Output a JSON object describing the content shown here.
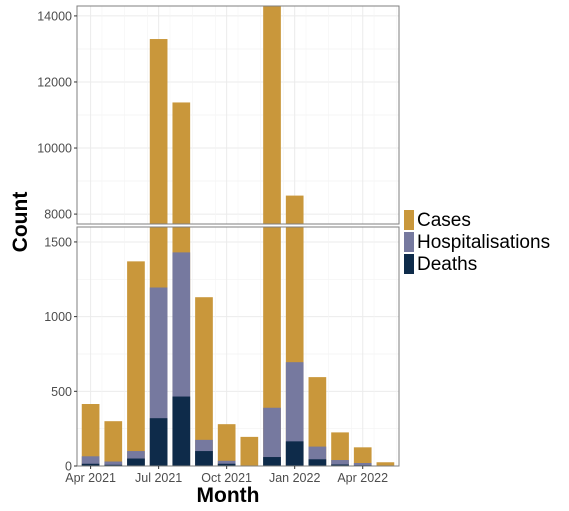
{
  "chart_data": {
    "type": "bar",
    "layout": "overlaid-broken-axis",
    "xlabel": "Month",
    "ylabel": "Count",
    "categories": [
      "2021-04",
      "2021-05",
      "2021-06",
      "2021-07",
      "2021-08",
      "2021-09",
      "2021-10",
      "2021-11",
      "2021-12",
      "2022-01",
      "2022-02",
      "2022-03",
      "2022-04",
      "2022-05"
    ],
    "x_ticks": [
      {
        "month": "2021-04",
        "label": "Apr 2021"
      },
      {
        "month": "2021-07",
        "label": "Jul 2021"
      },
      {
        "month": "2021-10",
        "label": "Oct 2021"
      },
      {
        "month": "2022-01",
        "label": "Jan 2022"
      },
      {
        "month": "2022-04",
        "label": "Apr 2022"
      }
    ],
    "series": [
      {
        "name": "Cases",
        "color": "#c9973b",
        "values": [
          415,
          300,
          1370,
          13300,
          11380,
          1130,
          280,
          195,
          14300,
          8560,
          595,
          225,
          125,
          25
        ]
      },
      {
        "name": "Hospitalisations",
        "color": "#76799f",
        "values": [
          65,
          30,
          100,
          1195,
          1430,
          175,
          35,
          0,
          390,
          695,
          130,
          40,
          20,
          0
        ]
      },
      {
        "name": "Deaths",
        "color": "#0e2b4a",
        "values": [
          15,
          8,
          50,
          320,
          465,
          100,
          15,
          0,
          60,
          165,
          45,
          10,
          5,
          0
        ]
      }
    ],
    "y_axis_lower": {
      "range": [
        0,
        1600
      ],
      "ticks": [
        0,
        500,
        1000,
        1500
      ]
    },
    "y_axis_upper": {
      "range": [
        7700,
        14300
      ],
      "ticks": [
        8000,
        10000,
        12000,
        14000
      ]
    },
    "grid": true,
    "legend": {
      "position": "right",
      "entries": [
        "Cases",
        "Hospitalisations",
        "Deaths"
      ]
    }
  }
}
